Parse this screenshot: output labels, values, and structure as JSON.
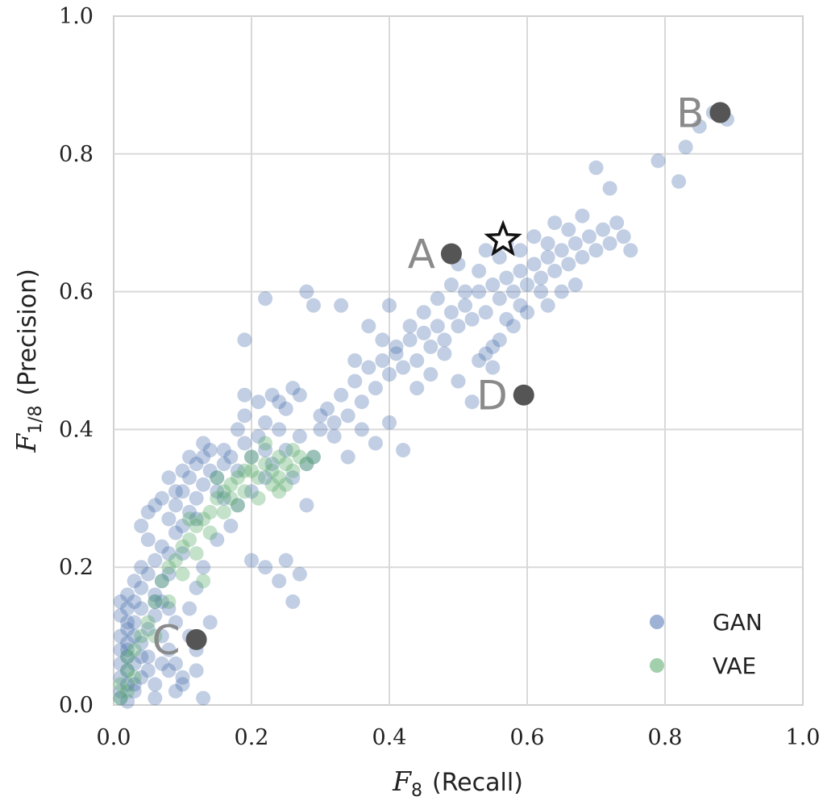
{
  "chart_data": {
    "type": "scatter",
    "xlim": [
      0,
      1
    ],
    "ylim": [
      0,
      1
    ],
    "grid": true,
    "legend_position": "bottom-right",
    "xticks": [
      "0.0",
      "0.2",
      "0.4",
      "0.6",
      "0.8",
      "1.0"
    ],
    "yticks": [
      "0.0",
      "0.2",
      "0.4",
      "0.6",
      "0.8",
      "1.0"
    ],
    "xlabel": {
      "main": "F",
      "sub": "8",
      "text": "(Recall)"
    },
    "ylabel": {
      "main": "F",
      "sub": "1/8",
      "text": "(Precision)"
    },
    "series": [
      {
        "name": "GAN",
        "color": "#4c72b0",
        "points": [
          [
            0.01,
            0.01
          ],
          [
            0.01,
            0.02
          ],
          [
            0.02,
            0.03
          ],
          [
            0.01,
            0.04
          ],
          [
            0.02,
            0.05
          ],
          [
            0.01,
            0.06
          ],
          [
            0.02,
            0.07
          ],
          [
            0.01,
            0.08
          ],
          [
            0.02,
            0.09
          ],
          [
            0.01,
            0.1
          ],
          [
            0.02,
            0.11
          ],
          [
            0.03,
            0.12
          ],
          [
            0.01,
            0.13
          ],
          [
            0.02,
            0.14
          ],
          [
            0.03,
            0.15
          ],
          [
            0.02,
            0.16
          ],
          [
            0.04,
            0.17
          ],
          [
            0.03,
            0.18
          ],
          [
            0.05,
            0.19
          ],
          [
            0.04,
            0.2
          ],
          [
            0.02,
            0.005
          ],
          [
            0.03,
            0.02
          ],
          [
            0.04,
            0.04
          ],
          [
            0.03,
            0.06
          ],
          [
            0.02,
            0.08
          ],
          [
            0.04,
            0.09
          ],
          [
            0.05,
            0.11
          ],
          [
            0.06,
            0.13
          ],
          [
            0.04,
            0.14
          ],
          [
            0.06,
            0.16
          ],
          [
            0.07,
            0.18
          ],
          [
            0.03,
            0.1
          ],
          [
            0.06,
            0.21
          ],
          [
            0.07,
            0.23
          ],
          [
            0.05,
            0.24
          ],
          [
            0.08,
            0.22
          ],
          [
            0.09,
            0.25
          ],
          [
            0.08,
            0.27
          ],
          [
            0.1,
            0.26
          ],
          [
            0.11,
            0.28
          ],
          [
            0.09,
            0.29
          ],
          [
            0.12,
            0.3
          ],
          [
            0.1,
            0.31
          ],
          [
            0.13,
            0.32
          ],
          [
            0.11,
            0.33
          ],
          [
            0.14,
            0.34
          ],
          [
            0.12,
            0.35
          ],
          [
            0.15,
            0.33
          ],
          [
            0.13,
            0.36
          ],
          [
            0.16,
            0.35
          ],
          [
            0.14,
            0.37
          ],
          [
            0.17,
            0.36
          ],
          [
            0.15,
            0.31
          ],
          [
            0.12,
            0.27
          ],
          [
            0.1,
            0.22
          ],
          [
            0.08,
            0.19
          ],
          [
            0.06,
            0.15
          ],
          [
            0.07,
            0.1
          ],
          [
            0.05,
            0.07
          ],
          [
            0.08,
            0.05
          ],
          [
            0.06,
            0.03
          ],
          [
            0.09,
            0.02
          ],
          [
            0.1,
            0.04
          ],
          [
            0.12,
            0.05
          ],
          [
            0.13,
            0.01
          ],
          [
            0.18,
            0.34
          ],
          [
            0.19,
            0.38
          ],
          [
            0.2,
            0.36
          ],
          [
            0.21,
            0.39
          ],
          [
            0.22,
            0.37
          ],
          [
            0.23,
            0.35
          ],
          [
            0.2,
            0.31
          ],
          [
            0.18,
            0.29
          ],
          [
            0.17,
            0.26
          ],
          [
            0.16,
            0.3
          ],
          [
            0.19,
            0.42
          ],
          [
            0.21,
            0.44
          ],
          [
            0.22,
            0.41
          ],
          [
            0.23,
            0.45
          ],
          [
            0.25,
            0.43
          ],
          [
            0.26,
            0.46
          ],
          [
            0.24,
            0.4
          ],
          [
            0.27,
            0.39
          ],
          [
            0.25,
            0.37
          ],
          [
            0.28,
            0.35
          ],
          [
            0.26,
            0.33
          ],
          [
            0.29,
            0.36
          ],
          [
            0.22,
            0.33
          ],
          [
            0.15,
            0.24
          ],
          [
            0.13,
            0.2
          ],
          [
            0.12,
            0.17
          ],
          [
            0.11,
            0.14
          ],
          [
            0.09,
            0.12
          ],
          [
            0.08,
            0.14
          ],
          [
            0.07,
            0.15
          ],
          [
            0.3,
            0.4
          ],
          [
            0.31,
            0.43
          ],
          [
            0.32,
            0.41
          ],
          [
            0.33,
            0.45
          ],
          [
            0.34,
            0.42
          ],
          [
            0.35,
            0.47
          ],
          [
            0.36,
            0.44
          ],
          [
            0.37,
            0.49
          ],
          [
            0.38,
            0.46
          ],
          [
            0.39,
            0.5
          ],
          [
            0.4,
            0.48
          ],
          [
            0.41,
            0.51
          ],
          [
            0.42,
            0.49
          ],
          [
            0.43,
            0.53
          ],
          [
            0.44,
            0.5
          ],
          [
            0.45,
            0.54
          ],
          [
            0.46,
            0.52
          ],
          [
            0.47,
            0.55
          ],
          [
            0.48,
            0.53
          ],
          [
            0.49,
            0.57
          ],
          [
            0.5,
            0.55
          ],
          [
            0.51,
            0.58
          ],
          [
            0.52,
            0.56
          ],
          [
            0.53,
            0.6
          ],
          [
            0.54,
            0.57
          ],
          [
            0.55,
            0.61
          ],
          [
            0.56,
            0.59
          ],
          [
            0.57,
            0.62
          ],
          [
            0.58,
            0.6
          ],
          [
            0.59,
            0.63
          ],
          [
            0.6,
            0.61
          ],
          [
            0.61,
            0.64
          ],
          [
            0.62,
            0.62
          ],
          [
            0.63,
            0.65
          ],
          [
            0.64,
            0.63
          ],
          [
            0.65,
            0.66
          ],
          [
            0.66,
            0.64
          ],
          [
            0.67,
            0.67
          ],
          [
            0.68,
            0.65
          ],
          [
            0.69,
            0.68
          ],
          [
            0.7,
            0.66
          ],
          [
            0.71,
            0.69
          ],
          [
            0.72,
            0.67
          ],
          [
            0.73,
            0.7
          ],
          [
            0.74,
            0.68
          ],
          [
            0.7,
            0.78
          ],
          [
            0.72,
            0.75
          ],
          [
            0.79,
            0.79
          ],
          [
            0.82,
            0.76
          ],
          [
            0.83,
            0.81
          ],
          [
            0.85,
            0.84
          ],
          [
            0.87,
            0.86
          ],
          [
            0.89,
            0.85
          ],
          [
            0.75,
            0.66
          ],
          [
            0.65,
            0.6
          ],
          [
            0.63,
            0.58
          ],
          [
            0.6,
            0.57
          ],
          [
            0.58,
            0.55
          ],
          [
            0.55,
            0.52
          ],
          [
            0.53,
            0.5
          ],
          [
            0.55,
            0.49
          ],
          [
            0.52,
            0.44
          ],
          [
            0.5,
            0.47
          ],
          [
            0.48,
            0.51
          ],
          [
            0.46,
            0.48
          ],
          [
            0.44,
            0.46
          ],
          [
            0.42,
            0.37
          ],
          [
            0.4,
            0.41
          ],
          [
            0.38,
            0.38
          ],
          [
            0.36,
            0.4
          ],
          [
            0.34,
            0.36
          ],
          [
            0.32,
            0.39
          ],
          [
            0.3,
            0.42
          ],
          [
            0.19,
            0.53
          ],
          [
            0.22,
            0.59
          ],
          [
            0.28,
            0.6
          ],
          [
            0.29,
            0.58
          ],
          [
            0.33,
            0.58
          ],
          [
            0.35,
            0.5
          ],
          [
            0.37,
            0.55
          ],
          [
            0.4,
            0.58
          ],
          [
            0.39,
            0.53
          ],
          [
            0.41,
            0.52
          ],
          [
            0.43,
            0.55
          ],
          [
            0.45,
            0.57
          ],
          [
            0.47,
            0.59
          ],
          [
            0.49,
            0.61
          ],
          [
            0.5,
            0.64
          ],
          [
            0.51,
            0.6
          ],
          [
            0.53,
            0.63
          ],
          [
            0.54,
            0.66
          ],
          [
            0.56,
            0.65
          ],
          [
            0.57,
            0.67
          ],
          [
            0.59,
            0.66
          ],
          [
            0.61,
            0.68
          ],
          [
            0.63,
            0.67
          ],
          [
            0.64,
            0.7
          ],
          [
            0.66,
            0.69
          ],
          [
            0.68,
            0.71
          ],
          [
            0.67,
            0.61
          ],
          [
            0.62,
            0.6
          ],
          [
            0.59,
            0.58
          ],
          [
            0.57,
            0.56
          ],
          [
            0.56,
            0.53
          ],
          [
            0.54,
            0.51
          ],
          [
            0.2,
            0.21
          ],
          [
            0.22,
            0.2
          ],
          [
            0.24,
            0.18
          ],
          [
            0.25,
            0.21
          ],
          [
            0.26,
            0.15
          ],
          [
            0.27,
            0.19
          ],
          [
            0.28,
            0.29
          ],
          [
            0.14,
            0.12
          ],
          [
            0.12,
            0.08
          ],
          [
            0.11,
            0.1
          ],
          [
            0.1,
            0.03
          ],
          [
            0.09,
            0.06
          ],
          [
            0.08,
            0.08
          ],
          [
            0.06,
            0.01
          ],
          [
            0.05,
            0.05
          ],
          [
            0.07,
            0.06
          ],
          [
            0.04,
            0.07
          ],
          [
            0.03,
            0.03
          ],
          [
            0.02,
            0.12
          ],
          [
            0.01,
            0.15
          ],
          [
            0.05,
            0.28
          ],
          [
            0.04,
            0.26
          ],
          [
            0.06,
            0.29
          ],
          [
            0.07,
            0.3
          ],
          [
            0.09,
            0.31
          ],
          [
            0.1,
            0.34
          ],
          [
            0.11,
            0.36
          ],
          [
            0.08,
            0.33
          ],
          [
            0.13,
            0.38
          ],
          [
            0.16,
            0.37
          ],
          [
            0.18,
            0.4
          ],
          [
            0.19,
            0.45
          ],
          [
            0.24,
            0.44
          ],
          [
            0.27,
            0.45
          ]
        ]
      },
      {
        "name": "VAE",
        "color": "#55a868",
        "points": [
          [
            0.01,
            0.01
          ],
          [
            0.02,
            0.02
          ],
          [
            0.01,
            0.03
          ],
          [
            0.02,
            0.05
          ],
          [
            0.03,
            0.04
          ],
          [
            0.02,
            0.07
          ],
          [
            0.03,
            0.08
          ],
          [
            0.04,
            0.1
          ],
          [
            0.05,
            0.12
          ],
          [
            0.06,
            0.15
          ],
          [
            0.07,
            0.18
          ],
          [
            0.08,
            0.2
          ],
          [
            0.09,
            0.21
          ],
          [
            0.1,
            0.23
          ],
          [
            0.11,
            0.24
          ],
          [
            0.12,
            0.26
          ],
          [
            0.13,
            0.27
          ],
          [
            0.14,
            0.28
          ],
          [
            0.15,
            0.3
          ],
          [
            0.16,
            0.31
          ],
          [
            0.17,
            0.32
          ],
          [
            0.18,
            0.33
          ],
          [
            0.19,
            0.31
          ],
          [
            0.2,
            0.34
          ],
          [
            0.21,
            0.33
          ],
          [
            0.22,
            0.35
          ],
          [
            0.23,
            0.34
          ],
          [
            0.24,
            0.36
          ],
          [
            0.25,
            0.35
          ],
          [
            0.26,
            0.34
          ],
          [
            0.27,
            0.36
          ],
          [
            0.28,
            0.35
          ],
          [
            0.29,
            0.36
          ],
          [
            0.17,
            0.3
          ],
          [
            0.19,
            0.34
          ],
          [
            0.21,
            0.3
          ],
          [
            0.23,
            0.32
          ],
          [
            0.25,
            0.32
          ],
          [
            0.2,
            0.36
          ],
          [
            0.22,
            0.38
          ],
          [
            0.24,
            0.33
          ],
          [
            0.18,
            0.29
          ],
          [
            0.16,
            0.28
          ],
          [
            0.14,
            0.25
          ],
          [
            0.12,
            0.22
          ],
          [
            0.1,
            0.19
          ],
          [
            0.13,
            0.18
          ],
          [
            0.06,
            0.1
          ],
          [
            0.08,
            0.15
          ],
          [
            0.11,
            0.27
          ],
          [
            0.15,
            0.33
          ],
          [
            0.24,
            0.31
          ],
          [
            0.26,
            0.37
          ]
        ]
      }
    ],
    "highlighted_points": [
      {
        "label": "A",
        "x": 0.49,
        "y": 0.655
      },
      {
        "label": "B",
        "x": 0.88,
        "y": 0.86
      },
      {
        "label": "C",
        "x": 0.12,
        "y": 0.095
      },
      {
        "label": "D",
        "x": 0.595,
        "y": 0.45
      }
    ],
    "star_marker": {
      "x": 0.565,
      "y": 0.675
    }
  }
}
